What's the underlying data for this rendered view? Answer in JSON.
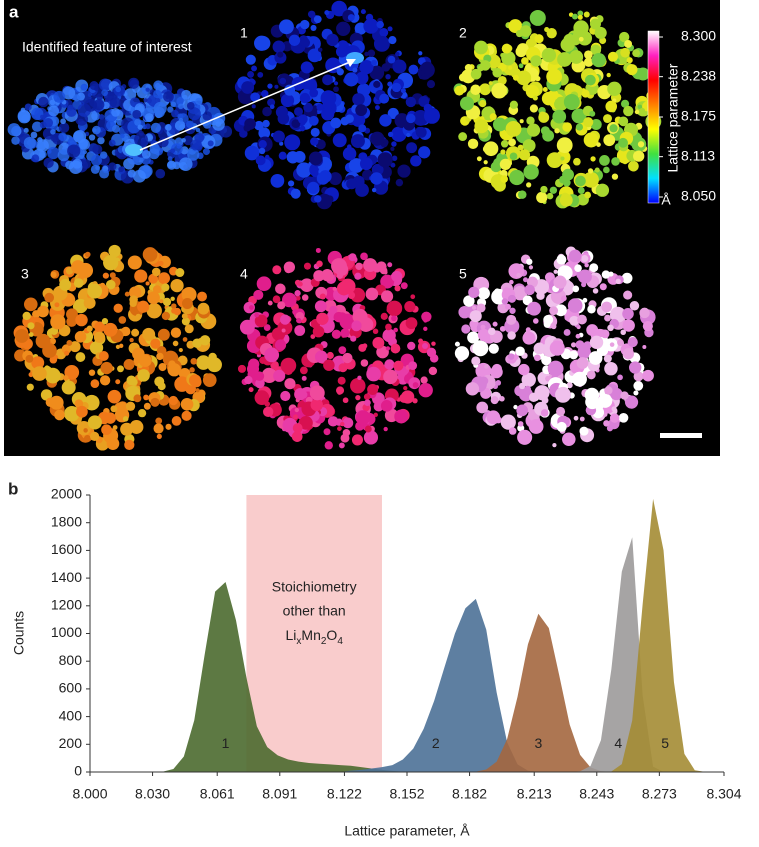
{
  "panel_a": {
    "label": "a",
    "feature_label": "Identified feature of interest",
    "blob_colors": [
      "#1030c0",
      "#1a50e0",
      "#2a6cf0",
      "#0c20a0",
      "#3a80ff"
    ],
    "panels": [
      {
        "label": "1",
        "colors": [
          "#0a14a0",
          "#0c1cc0",
          "#1030d8",
          "#0a0a70",
          "#1844e8"
        ]
      },
      {
        "label": "2",
        "colors": [
          "#e6e61c",
          "#d8e020",
          "#a8d830",
          "#70c840",
          "#f0f040"
        ]
      },
      {
        "label": "3",
        "colors": [
          "#f08c1c",
          "#e8a020",
          "#f07818",
          "#e0b828",
          "#d86c10"
        ]
      },
      {
        "label": "4",
        "colors": [
          "#e01e8c",
          "#f02870",
          "#e83ca8",
          "#d81050",
          "#f04a9c"
        ]
      },
      {
        "label": "5",
        "colors": [
          "#e8a0e0",
          "#f0c0ec",
          "#d880d8",
          "#ffffff",
          "#e890e0"
        ]
      }
    ],
    "colorbar": {
      "label": "Lattice parameter",
      "unit": "Å",
      "lim": [
        8.05,
        8.3
      ],
      "ticks": [
        {
          "value": 8.3,
          "label": "8.300"
        },
        8.238,
        8.175,
        8.113,
        {
          "value": 8.05,
          "label": "8.050"
        }
      ],
      "colors": [
        "#0000ff",
        "#00e0ff",
        "#40e040",
        "#ffff00",
        "#ff8000",
        "#ff0000",
        "#ff20c0",
        "#ffffff"
      ]
    }
  },
  "chart_data": {
    "type": "area",
    "label": "b",
    "x_label": "Lattice parameter, Å",
    "y_label": "Counts",
    "xlim": [
      8.0,
      8.304
    ],
    "ylim": [
      0,
      2000
    ],
    "xticks": [
      {
        "value": 8.0,
        "label": "8.000"
      },
      {
        "value": 8.03,
        "label": "8.030"
      },
      8.061,
      8.091,
      8.122,
      8.152,
      8.182,
      8.213,
      8.243,
      8.273,
      8.304
    ],
    "yticks": [
      0,
      200,
      400,
      600,
      800,
      1000,
      1200,
      1400,
      1600,
      1800,
      2000
    ],
    "highlight_range": [
      8.075,
      8.14
    ],
    "highlight_color": "#f9cccc",
    "annotation": {
      "lines": [
        "Stoichiometry",
        "other than"
      ],
      "formula": [
        [
          "Li",
          "x"
        ],
        [
          "Mn",
          "2"
        ],
        [
          "O",
          "4"
        ]
      ]
    },
    "x": [
      8.035,
      8.04,
      8.045,
      8.05,
      8.055,
      8.06,
      8.065,
      8.07,
      8.075,
      8.08,
      8.085,
      8.09,
      8.095,
      8.1,
      8.105,
      8.11,
      8.115,
      8.12,
      8.125,
      8.13,
      8.135,
      8.14,
      8.145,
      8.15,
      8.155,
      8.16,
      8.165,
      8.17,
      8.175,
      8.18,
      8.185,
      8.19,
      8.195,
      8.2,
      8.205,
      8.21,
      8.215,
      8.22,
      8.225,
      8.23,
      8.235,
      8.24,
      8.245,
      8.25,
      8.255,
      8.26,
      8.265,
      8.27,
      8.275,
      8.28,
      8.285,
      8.29,
      8.295,
      8.3
    ],
    "series": [
      {
        "name": "1",
        "color": "#4b6a2f",
        "values": [
          3,
          22,
          112,
          374,
          849,
          1302,
          1372,
          1096,
          682,
          330,
          180,
          120,
          90,
          75,
          65,
          60,
          55,
          50,
          45,
          35,
          25,
          15,
          8,
          3,
          0,
          0,
          0,
          0,
          0,
          0,
          0,
          0,
          0,
          0,
          0,
          0,
          0,
          0,
          0,
          0,
          0,
          0,
          0,
          0,
          0,
          0,
          0,
          0,
          0,
          0,
          0,
          0,
          0,
          0
        ]
      },
      {
        "name": "2",
        "color": "#4c7197",
        "values": [
          0,
          0,
          0,
          0,
          0,
          0,
          0,
          0,
          0,
          0,
          0,
          0,
          0,
          0,
          0,
          0,
          0,
          0,
          10,
          15,
          25,
          35,
          50,
          90,
          169,
          312,
          513,
          758,
          1000,
          1182,
          1250,
          1028,
          573,
          215,
          55,
          10,
          2,
          0,
          0,
          0,
          0,
          0,
          0,
          0,
          0,
          0,
          0,
          0,
          0,
          0,
          0,
          0,
          0,
          0
        ]
      },
      {
        "name": "3",
        "color": "#a4673f",
        "values": [
          0,
          0,
          0,
          0,
          0,
          0,
          0,
          0,
          0,
          0,
          0,
          0,
          0,
          0,
          0,
          0,
          0,
          0,
          0,
          0,
          0,
          0,
          0,
          0,
          0,
          0,
          0,
          0,
          0,
          0,
          3,
          18,
          75,
          237,
          543,
          922,
          1143,
          1040,
          698,
          343,
          124,
          33,
          6,
          0,
          0,
          0,
          0,
          0,
          0,
          0,
          0,
          0,
          0,
          0
        ]
      },
      {
        "name": "4",
        "color": "#9c9a9a",
        "values": [
          0,
          0,
          0,
          0,
          0,
          0,
          0,
          0,
          0,
          0,
          0,
          0,
          0,
          0,
          0,
          0,
          0,
          0,
          0,
          0,
          0,
          0,
          0,
          0,
          0,
          0,
          0,
          0,
          0,
          0,
          0,
          0,
          0,
          0,
          0,
          0,
          0,
          0,
          0,
          1,
          5,
          43,
          230,
          743,
          1447,
          1695,
          552,
          39,
          1,
          0,
          0,
          0,
          0,
          0
        ]
      },
      {
        "name": "5",
        "color": "#a48c34",
        "values": [
          0,
          0,
          0,
          0,
          0,
          0,
          0,
          0,
          0,
          0,
          0,
          0,
          0,
          0,
          0,
          0,
          0,
          0,
          0,
          0,
          0,
          0,
          0,
          0,
          0,
          0,
          0,
          0,
          0,
          0,
          0,
          0,
          0,
          0,
          0,
          0,
          0,
          0,
          0,
          0,
          0,
          0,
          0,
          4,
          57,
          373,
          1213,
          1972,
          1601,
          649,
          131,
          13,
          1,
          0
        ]
      }
    ]
  }
}
